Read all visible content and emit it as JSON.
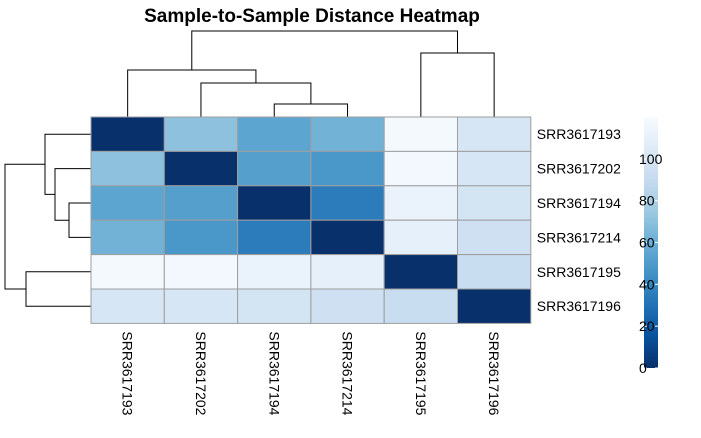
{
  "chart_data": {
    "type": "heatmap",
    "title": "Sample-to-Sample Distance Heatmap",
    "rows": [
      "SRR3617193",
      "SRR3617202",
      "SRR3617194",
      "SRR3617214",
      "SRR3617195",
      "SRR3617196"
    ],
    "columns": [
      "SRR3617193",
      "SRR3617202",
      "SRR3617194",
      "SRR3617214",
      "SRR3617195",
      "SRR3617196"
    ],
    "values": [
      [
        0,
        70,
        55,
        62,
        118,
        100
      ],
      [
        70,
        0,
        52,
        48,
        117,
        100
      ],
      [
        55,
        52,
        0,
        35,
        112,
        98
      ],
      [
        62,
        48,
        35,
        0,
        110,
        95
      ],
      [
        118,
        117,
        112,
        110,
        0,
        92
      ],
      [
        100,
        100,
        98,
        95,
        92,
        0
      ]
    ],
    "colorbar": {
      "min": 0,
      "max": 120,
      "ticks": [
        0,
        20,
        40,
        60,
        80,
        100
      ],
      "colors": [
        "#08306b",
        "#08519c",
        "#2171b5",
        "#4292c6",
        "#6baed6",
        "#9ecae1",
        "#c6dbef",
        "#deebf7",
        "#f7fbff"
      ]
    },
    "row_dendrogram": true,
    "column_dendrogram": true,
    "legend_position": "right"
  }
}
